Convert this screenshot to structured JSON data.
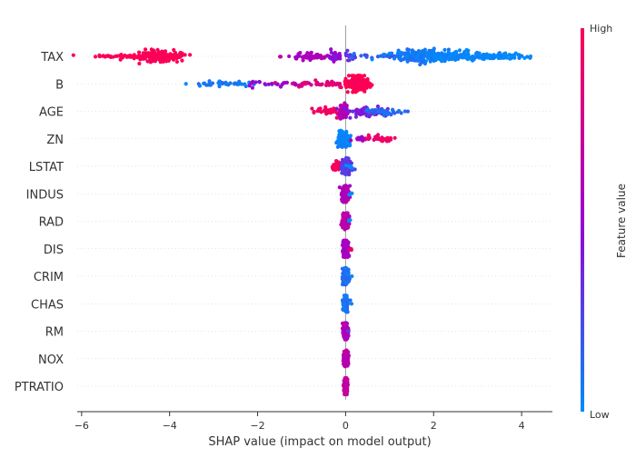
{
  "chart_data": {
    "type": "scatter",
    "subtype": "shap-beeswarm",
    "title": "",
    "xlabel": "SHAP value (impact on model output)",
    "ylabel": "",
    "xlim": [
      -6.1,
      4.7
    ],
    "xticks": [
      -6,
      -4,
      -2,
      0,
      2,
      4
    ],
    "xtick_labels": [
      "−6",
      "−4",
      "−2",
      "0",
      "2",
      "4"
    ],
    "grid": false,
    "colors": {
      "low": "#008bfb",
      "high": "#ff0052",
      "zero_line": "#999999",
      "row_guide": "#cccccc"
    },
    "colorbar": {
      "title": "Feature value",
      "high_label": "High",
      "low_label": "Low",
      "placement": "right"
    },
    "features": [
      {
        "name": "TAX",
        "clusters": [
          {
            "center": -4.35,
            "spread": 0.22,
            "n": 150,
            "value": 1.0,
            "jitter": 0.75
          },
          {
            "center": -3.9,
            "spread": 0.18,
            "n": 40,
            "value": 1.0,
            "jitter": 0.4
          },
          {
            "center": -5.0,
            "spread": 0.35,
            "n": 35,
            "value": 1.0,
            "jitter": 0.2
          },
          {
            "center": -5.55,
            "spread": 0.12,
            "n": 6,
            "value": 1.0,
            "jitter": 0.1
          },
          {
            "center": -1.5,
            "spread": 0.05,
            "n": 2,
            "value": 0.7,
            "jitter": 0.1
          },
          {
            "center": -0.9,
            "spread": 0.18,
            "n": 45,
            "value": 0.58,
            "jitter": 0.55
          },
          {
            "center": -0.55,
            "spread": 0.12,
            "n": 12,
            "value": 0.6,
            "jitter": 0.35
          },
          {
            "center": -0.25,
            "spread": 0.08,
            "n": 30,
            "value": 0.45,
            "jitter": 0.65
          },
          {
            "center": 0.1,
            "spread": 0.1,
            "n": 14,
            "value": 0.3,
            "jitter": 0.5
          },
          {
            "center": 0.7,
            "spread": 0.3,
            "n": 18,
            "value": 0.18,
            "jitter": 0.25
          },
          {
            "center": 1.6,
            "spread": 0.35,
            "n": 170,
            "value": 0.06,
            "jitter": 0.8
          },
          {
            "center": 2.35,
            "spread": 0.3,
            "n": 90,
            "value": 0.03,
            "jitter": 0.6
          },
          {
            "center": 3.2,
            "spread": 0.35,
            "n": 80,
            "value": 0.0,
            "jitter": 0.45
          },
          {
            "center": 3.9,
            "spread": 0.2,
            "n": 14,
            "value": 0.0,
            "jitter": 0.25
          },
          {
            "center": 4.2,
            "spread": 0.03,
            "n": 1,
            "value": 0.0,
            "jitter": 0.0
          }
        ]
      },
      {
        "name": "B",
        "clusters": [
          {
            "center": -3.65,
            "spread": 0.05,
            "n": 1,
            "value": 0.0,
            "jitter": 0.0
          },
          {
            "center": -2.6,
            "spread": 0.45,
            "n": 45,
            "value": 0.08,
            "jitter": 0.3
          },
          {
            "center": -1.5,
            "spread": 0.4,
            "n": 30,
            "value": 0.5,
            "jitter": 0.3
          },
          {
            "center": -0.5,
            "spread": 0.35,
            "n": 45,
            "value": 0.85,
            "jitter": 0.35
          },
          {
            "center": 0.3,
            "spread": 0.12,
            "n": 200,
            "value": 1.0,
            "jitter": 1.0
          },
          {
            "center": 0.45,
            "spread": 0.06,
            "n": 20,
            "value": 1.0,
            "jitter": 0.5
          }
        ]
      },
      {
        "name": "AGE",
        "clusters": [
          {
            "center": -0.4,
            "spread": 0.15,
            "n": 40,
            "value": 0.95,
            "jitter": 0.5
          },
          {
            "center": -0.05,
            "spread": 0.05,
            "n": 80,
            "value": 0.6,
            "jitter": 1.0
          },
          {
            "center": 0.4,
            "spread": 0.2,
            "n": 60,
            "value": 0.4,
            "jitter": 0.6
          },
          {
            "center": 0.85,
            "spread": 0.18,
            "n": 40,
            "value": 0.12,
            "jitter": 0.5
          },
          {
            "center": 1.35,
            "spread": 0.03,
            "n": 1,
            "value": 0.05,
            "jitter": 0.0
          }
        ]
      },
      {
        "name": "ZN",
        "clusters": [
          {
            "center": -0.05,
            "spread": 0.06,
            "n": 250,
            "value": 0.02,
            "jitter": 1.0
          },
          {
            "center": 0.35,
            "spread": 0.12,
            "n": 20,
            "value": 0.55,
            "jitter": 0.35
          },
          {
            "center": 0.75,
            "spread": 0.15,
            "n": 25,
            "value": 0.9,
            "jitter": 0.4
          },
          {
            "center": 0.95,
            "spread": 0.05,
            "n": 6,
            "value": 1.0,
            "jitter": 0.2
          }
        ]
      },
      {
        "name": "LSTAT",
        "clusters": [
          {
            "center": -0.15,
            "spread": 0.08,
            "n": 60,
            "value": 0.95,
            "jitter": 0.5
          },
          {
            "center": 0.02,
            "spread": 0.05,
            "n": 150,
            "value": 0.3,
            "jitter": 1.0
          },
          {
            "center": 0.1,
            "spread": 0.05,
            "n": 6,
            "value": 0.0,
            "jitter": 0.3
          }
        ]
      },
      {
        "name": "INDUS",
        "clusters": [
          {
            "center": 0.0,
            "spread": 0.04,
            "n": 200,
            "value": 0.6,
            "jitter": 1.0
          },
          {
            "center": 0.1,
            "spread": 0.02,
            "n": 3,
            "value": 0.0,
            "jitter": 0.2
          }
        ]
      },
      {
        "name": "RAD",
        "clusters": [
          {
            "center": 0.0,
            "spread": 0.035,
            "n": 200,
            "value": 0.65,
            "jitter": 1.0
          },
          {
            "center": 0.1,
            "spread": 0.02,
            "n": 3,
            "value": 0.0,
            "jitter": 0.2
          }
        ]
      },
      {
        "name": "DIS",
        "clusters": [
          {
            "center": 0.0,
            "spread": 0.035,
            "n": 200,
            "value": 0.55,
            "jitter": 1.0
          },
          {
            "center": 0.12,
            "spread": 0.02,
            "n": 3,
            "value": 0.9,
            "jitter": 0.2
          }
        ]
      },
      {
        "name": "CRIM",
        "clusters": [
          {
            "center": 0.0,
            "spread": 0.03,
            "n": 200,
            "value": 0.1,
            "jitter": 1.0
          },
          {
            "center": 0.12,
            "spread": 0.01,
            "n": 1,
            "value": 0.0,
            "jitter": 0.0
          }
        ]
      },
      {
        "name": "CHAS",
        "clusters": [
          {
            "center": 0.0,
            "spread": 0.025,
            "n": 200,
            "value": 0.08,
            "jitter": 1.0
          },
          {
            "center": 0.12,
            "spread": 0.01,
            "n": 1,
            "value": 0.0,
            "jitter": 0.0
          }
        ]
      },
      {
        "name": "RM",
        "clusters": [
          {
            "center": 0.0,
            "spread": 0.03,
            "n": 200,
            "value": 0.6,
            "jitter": 1.0
          },
          {
            "center": 0.08,
            "spread": 0.01,
            "n": 1,
            "value": 0.3,
            "jitter": 0.0
          }
        ]
      },
      {
        "name": "NOX",
        "clusters": [
          {
            "center": 0.0,
            "spread": 0.025,
            "n": 200,
            "value": 0.65,
            "jitter": 1.0
          }
        ]
      },
      {
        "name": "PTRATIO",
        "clusters": [
          {
            "center": 0.0,
            "spread": 0.02,
            "n": 200,
            "value": 0.7,
            "jitter": 1.0
          }
        ]
      }
    ]
  }
}
